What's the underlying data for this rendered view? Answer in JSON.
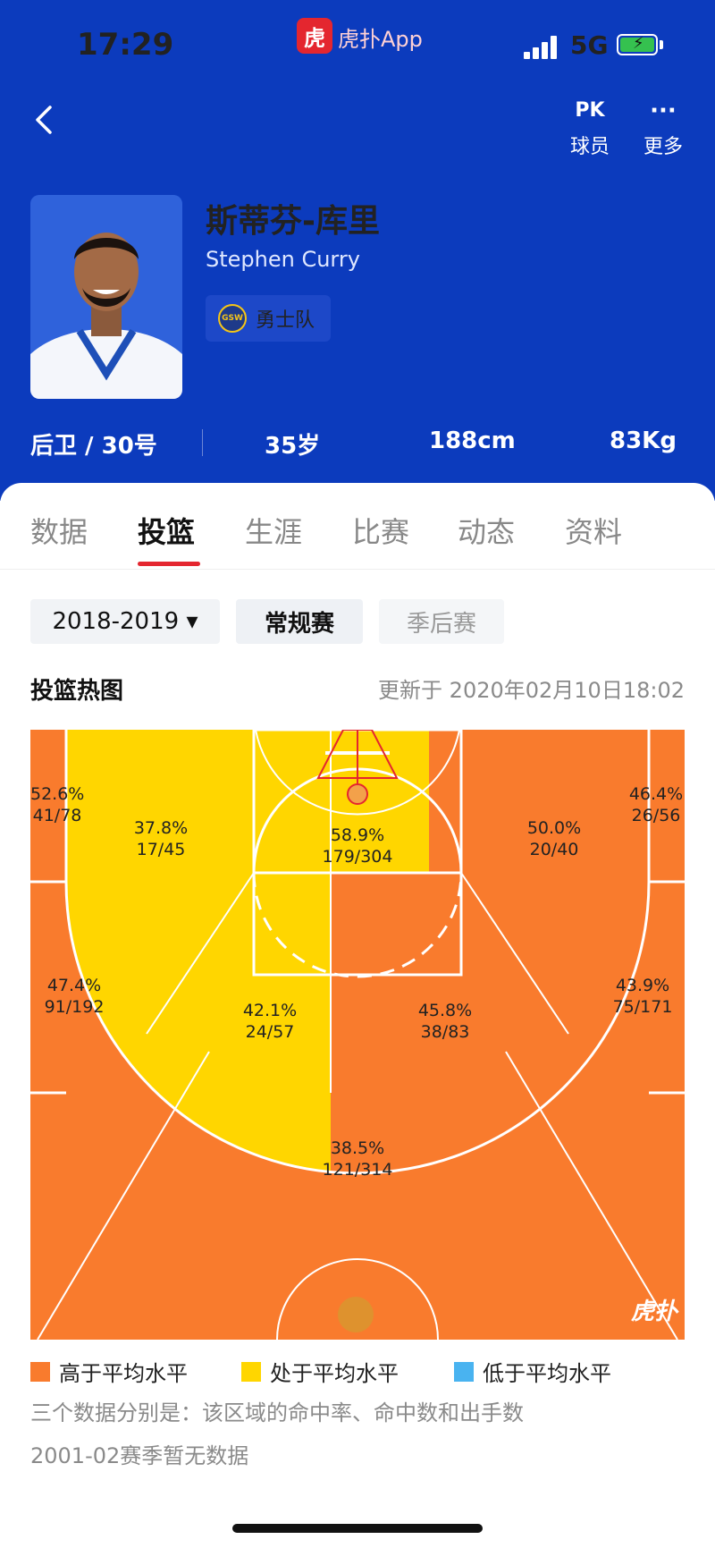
{
  "status_bar": {
    "time": "17:29",
    "app_name": "虎扑App",
    "app_logo_text": "虎",
    "network": "5G"
  },
  "header": {
    "pk_icon_text": "PK",
    "more_icon_text": "···",
    "pk_label": "球员",
    "more_label": "更多"
  },
  "player": {
    "name_cn": "斯蒂芬-库里",
    "name_en": "Stephen Curry",
    "team": "勇士队",
    "team_logo_text": "GSW",
    "position_number": "后卫 / 30号",
    "age": "35岁",
    "height": "188cm",
    "weight": "83Kg"
  },
  "tabs": [
    {
      "label": "数据"
    },
    {
      "label": "投篮"
    },
    {
      "label": "生涯"
    },
    {
      "label": "比赛"
    },
    {
      "label": "动态"
    },
    {
      "label": "资料"
    }
  ],
  "filters": {
    "season": "2018-2019 ▾",
    "regular": "常规赛",
    "playoffs": "季后赛"
  },
  "heatmap": {
    "title": "投篮热图",
    "updated": "更新于 2020年02月10日18:02",
    "colors": {
      "above": "#f97b2d",
      "average": "#ffd600",
      "below": "#49b3f0"
    },
    "zones": [
      {
        "pct": "52.6%",
        "made": "41/78",
        "level": "above"
      },
      {
        "pct": "37.8%",
        "made": "17/45",
        "level": "average"
      },
      {
        "pct": "58.9%",
        "made": "179/304",
        "level": "average"
      },
      {
        "pct": "50.0%",
        "made": "20/40",
        "level": "above"
      },
      {
        "pct": "46.4%",
        "made": "26/56",
        "level": "above"
      },
      {
        "pct": "47.4%",
        "made": "91/192",
        "level": "above"
      },
      {
        "pct": "42.1%",
        "made": "24/57",
        "level": "average"
      },
      {
        "pct": "45.8%",
        "made": "38/83",
        "level": "above"
      },
      {
        "pct": "43.9%",
        "made": "75/171",
        "level": "above"
      },
      {
        "pct": "38.5%",
        "made": "121/314",
        "level": "above"
      }
    ],
    "watermark": "虎扑"
  },
  "legend": [
    {
      "label": "高于平均水平",
      "color": "#f97b2d"
    },
    {
      "label": "处于平均水平",
      "color": "#ffd600"
    },
    {
      "label": "低于平均水平",
      "color": "#49b3f0"
    }
  ],
  "notes": {
    "line1": "三个数据分别是：该区域的命中率、命中数和出手数",
    "line2": "2001-02赛季暂无数据"
  }
}
